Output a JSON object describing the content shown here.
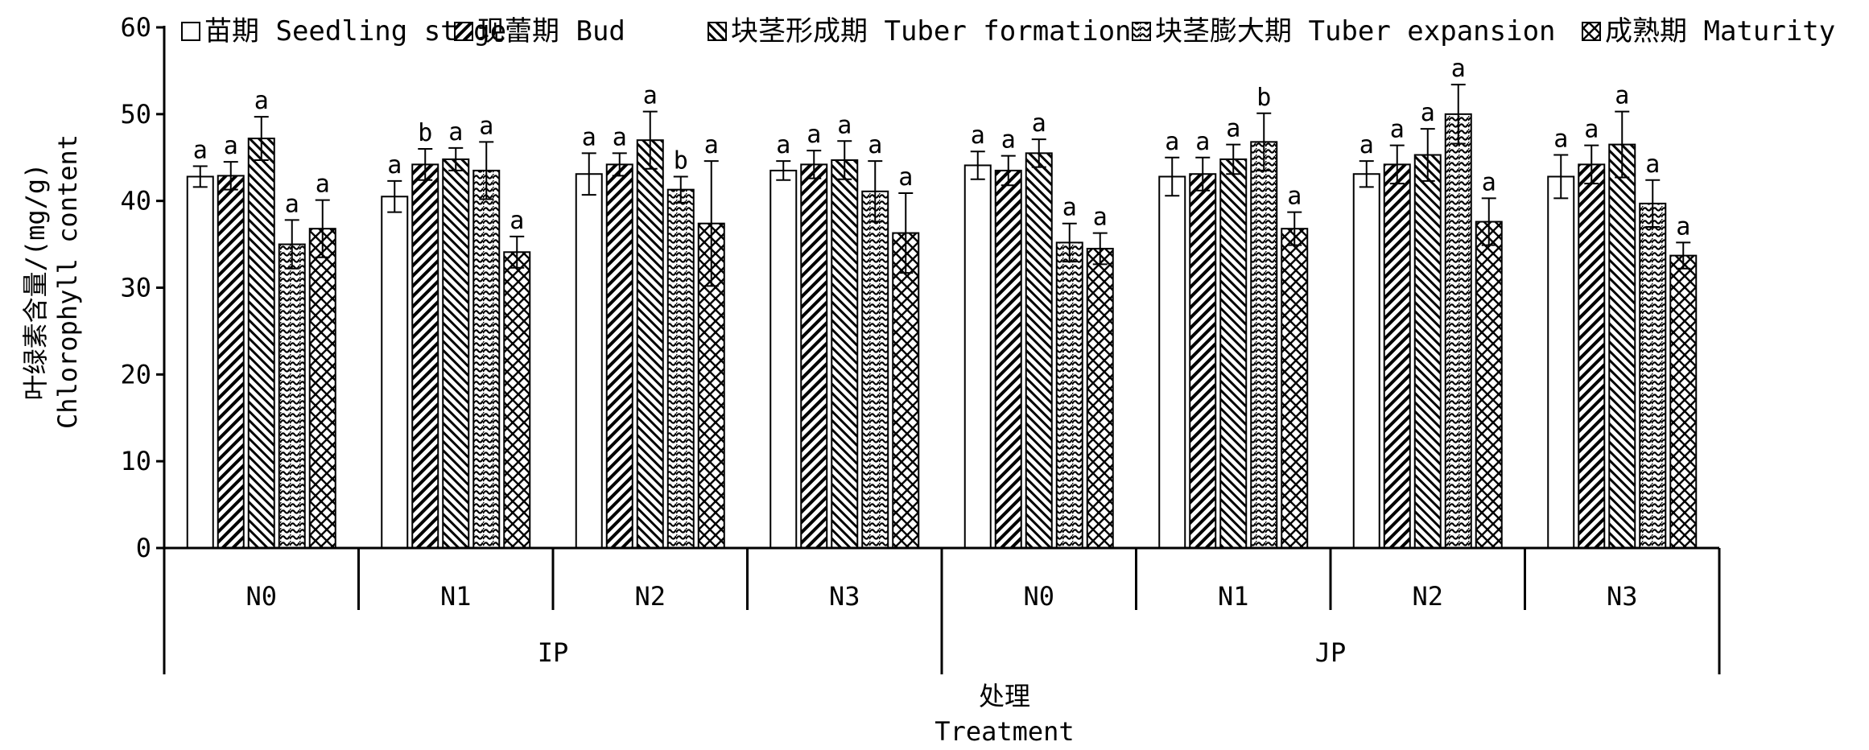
{
  "chart_data": {
    "type": "bar",
    "title": "",
    "ylabel_lines": [
      "叶绿素含量/(mg/g)",
      "Chlorophyll content"
    ],
    "xlabel_lines": [
      "处理",
      "Treatment"
    ],
    "ylim": [
      0,
      60
    ],
    "yticks": [
      "0",
      "10",
      "20",
      "30",
      "40",
      "50",
      "60"
    ],
    "grid": false,
    "legend_position": "top",
    "groups": [
      {
        "label": "IP",
        "categories": [
          "N0",
          "N1",
          "N2",
          "N3"
        ]
      },
      {
        "label": "JP",
        "categories": [
          "N0",
          "N1",
          "N2",
          "N3"
        ]
      }
    ],
    "categories": [
      "IP-N0",
      "IP-N1",
      "IP-N2",
      "IP-N3",
      "JP-N0",
      "JP-N1",
      "JP-N2",
      "JP-N3"
    ],
    "series": [
      {
        "name": "苗期 Seedling stage",
        "pattern": "none",
        "values": [
          42.8,
          40.5,
          43.1,
          43.5,
          44.1,
          42.8,
          43.1,
          42.8
        ],
        "errors": [
          1.2,
          1.8,
          2.4,
          1.1,
          1.6,
          2.2,
          1.5,
          2.5
        ],
        "sig": [
          "a",
          "a",
          "a",
          "a",
          "a",
          "a",
          "a",
          "a"
        ]
      },
      {
        "name": "现蕾期 Bud",
        "pattern": "diag-down",
        "values": [
          42.9,
          44.2,
          44.2,
          44.2,
          43.5,
          43.1,
          44.2,
          44.2
        ],
        "errors": [
          1.6,
          1.8,
          1.3,
          1.6,
          1.7,
          1.9,
          2.2,
          2.2
        ],
        "sig": [
          "a",
          "b",
          "a",
          "a",
          "a",
          "a",
          "a",
          "a"
        ]
      },
      {
        "name": "块茎形成期 Tuber formation",
        "pattern": "diag-up",
        "values": [
          47.2,
          44.8,
          47.0,
          44.7,
          45.5,
          44.8,
          45.3,
          46.5
        ],
        "errors": [
          2.5,
          1.3,
          3.3,
          2.2,
          1.6,
          1.7,
          3.0,
          3.8
        ],
        "sig": [
          "a",
          "a",
          "a",
          "a",
          "a",
          "a",
          "a",
          "a"
        ]
      },
      {
        "name": "块茎膨大期 Tuber expansion",
        "pattern": "wave",
        "values": [
          35.0,
          43.5,
          41.3,
          41.1,
          35.2,
          46.8,
          50.0,
          39.7
        ],
        "errors": [
          2.8,
          3.3,
          1.5,
          3.5,
          2.2,
          3.3,
          3.4,
          2.7
        ],
        "sig": [
          "a",
          "a",
          "b",
          "a",
          "a",
          "b",
          "a",
          "a"
        ]
      },
      {
        "name": "成熟期 Maturity",
        "pattern": "cross",
        "values": [
          36.8,
          34.1,
          37.4,
          36.3,
          34.5,
          36.8,
          37.6,
          33.7
        ],
        "errors": [
          3.3,
          1.8,
          7.2,
          4.6,
          1.8,
          1.9,
          2.7,
          1.5
        ],
        "sig": [
          "a",
          "a",
          "a",
          "a",
          "a",
          "a",
          "a",
          "a"
        ]
      }
    ]
  }
}
